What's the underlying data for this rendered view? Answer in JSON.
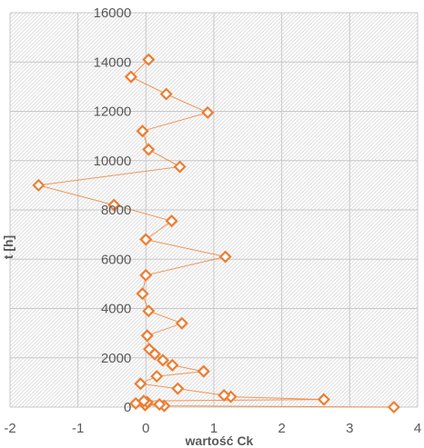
{
  "chart_data": {
    "type": "scatter",
    "title": "",
    "xlabel": "wartość Ck",
    "ylabel": "t [h]",
    "xlim": [
      -2,
      4
    ],
    "ylim": [
      0,
      16000
    ],
    "x_ticks": [
      -2,
      -1,
      0,
      1,
      2,
      3,
      4
    ],
    "y_ticks": [
      0,
      2000,
      4000,
      6000,
      8000,
      10000,
      12000,
      14000,
      16000
    ],
    "x_tick_labels": [
      "-2",
      "-1",
      "0",
      "1",
      "2",
      "3",
      "4"
    ],
    "y_tick_labels": [
      "0",
      "2000",
      "4000",
      "6000",
      "8000",
      "10000",
      "12000",
      "14000",
      "16000"
    ],
    "grid": true,
    "background": "hatched",
    "legend": "none",
    "series": [
      {
        "color": "#ed7d31",
        "marker": "diamond-open",
        "connected": true,
        "points": [
          {
            "x": 3.65,
            "y": 0
          },
          {
            "x": 0.27,
            "y": 50
          },
          {
            "x": -0.01,
            "y": 80
          },
          {
            "x": 0.2,
            "y": 110
          },
          {
            "x": -0.15,
            "y": 150
          },
          {
            "x": 0.02,
            "y": 200
          },
          {
            "x": -0.03,
            "y": 250
          },
          {
            "x": 2.62,
            "y": 310
          },
          {
            "x": 1.25,
            "y": 420
          },
          {
            "x": 1.15,
            "y": 480
          },
          {
            "x": 0.47,
            "y": 750
          },
          {
            "x": -0.08,
            "y": 950
          },
          {
            "x": 0.16,
            "y": 1250
          },
          {
            "x": 0.85,
            "y": 1450
          },
          {
            "x": 0.39,
            "y": 1700
          },
          {
            "x": 0.25,
            "y": 1900
          },
          {
            "x": 0.13,
            "y": 2150
          },
          {
            "x": 0.05,
            "y": 2350
          },
          {
            "x": 0.02,
            "y": 2900
          },
          {
            "x": 0.53,
            "y": 3400
          },
          {
            "x": 0.04,
            "y": 3900
          },
          {
            "x": -0.05,
            "y": 4600
          },
          {
            "x": 0.0,
            "y": 5350
          },
          {
            "x": 1.17,
            "y": 6100
          },
          {
            "x": 0.0,
            "y": 6800
          },
          {
            "x": 0.38,
            "y": 7550
          },
          {
            "x": -0.47,
            "y": 8200
          },
          {
            "x": -1.58,
            "y": 9000
          },
          {
            "x": 0.5,
            "y": 9750
          },
          {
            "x": 0.04,
            "y": 10450
          },
          {
            "x": -0.05,
            "y": 11200
          },
          {
            "x": 0.91,
            "y": 11950
          },
          {
            "x": 0.3,
            "y": 12700
          },
          {
            "x": -0.22,
            "y": 13400
          },
          {
            "x": 0.04,
            "y": 14100
          }
        ]
      }
    ]
  }
}
